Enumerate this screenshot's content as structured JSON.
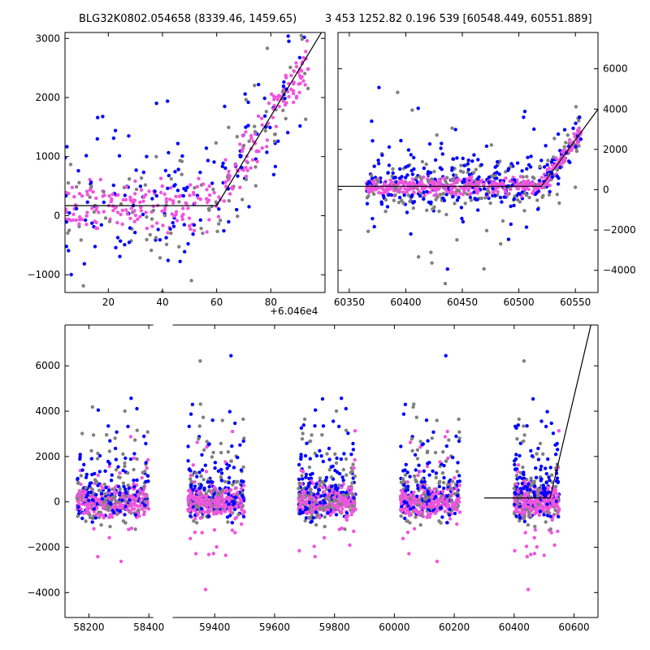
{
  "figure": {
    "title_left": "BLG32K0802.054658 (8339.46, 1459.65)",
    "title_right": "3 453 1252.82 0.196 539 [60548.449, 60551.889]",
    "offset_label": "+6.046e4"
  },
  "colors": {
    "grey": "#808080",
    "blue": "#0000ff",
    "magenta": "#ee55dd",
    "model": "#000000"
  },
  "chart_data": [
    {
      "id": "zoom",
      "type": "scatter",
      "title": "BLG32K0802.054658 (8339.46, 1459.65)",
      "x_offset": 60460,
      "xlim": [
        4,
        100
      ],
      "ylim": [
        -1300,
        3100
      ],
      "xticks": [
        20,
        40,
        60,
        80
      ],
      "yticks": [
        -1000,
        0,
        1000,
        2000,
        3000
      ],
      "model": {
        "x": [
          4,
          60,
          100
        ],
        "y": [
          170,
          170,
          3200
        ]
      }
    },
    {
      "id": "season",
      "type": "scatter",
      "title": "3 453 1252.82 0.196 539 [60548.449, 60551.889]",
      "xlim": [
        60340,
        60570
      ],
      "ylim": [
        -5100,
        7800
      ],
      "xticks": [
        60350,
        60400,
        60450,
        60500,
        60550
      ],
      "yticks": [
        -4000,
        -2000,
        0,
        2000,
        4000,
        6000
      ],
      "model": {
        "x": [
          60340,
          60520,
          60570
        ],
        "y": [
          170,
          170,
          4000
        ]
      }
    },
    {
      "id": "full",
      "type": "scatter",
      "xlim": [
        58120,
        60680
      ],
      "ylim": [
        -5100,
        7800
      ],
      "xticks": [
        58200,
        58400,
        59400,
        59600,
        59800,
        60000,
        60200,
        60400,
        60600
      ],
      "yticks": [
        -4000,
        -2000,
        0,
        2000,
        4000,
        6000
      ],
      "x_break": [
        58420,
        59200
      ],
      "seasons": [
        [
          58160,
          58400
        ],
        [
          59310,
          59500
        ],
        [
          59680,
          59870
        ],
        [
          60020,
          60220
        ],
        [
          60400,
          60550
        ]
      ],
      "model": {
        "x": [
          60300,
          60520,
          60660
        ],
        "y": [
          170,
          170,
          8000
        ]
      }
    }
  ]
}
